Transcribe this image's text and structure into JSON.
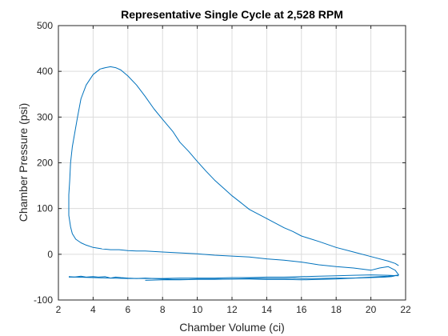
{
  "chart_data": {
    "type": "line",
    "title": "Representative Single Cycle at 2,528 RPM",
    "xlabel": "Chamber Volume (ci)",
    "ylabel": "Chamber Pressure (psi)",
    "xlim": [
      2,
      22
    ],
    "ylim": [
      -100,
      500
    ],
    "xticks": [
      2,
      4,
      6,
      8,
      10,
      12,
      14,
      16,
      18,
      20,
      22
    ],
    "yticks": [
      -100,
      0,
      100,
      200,
      300,
      400,
      500
    ],
    "grid": true,
    "box": true,
    "colors": {
      "series": "#0072BD",
      "grid": "#DCDCDC",
      "axis": "#262626"
    },
    "series": [
      {
        "x": [
          2.6,
          2.9,
          3.3,
          3.6,
          4.0,
          4.3,
          4.7,
          5.0,
          5.3,
          5.6,
          6.0,
          6.5,
          7.0,
          7.5,
          8.0,
          8.6,
          9.0,
          9.5,
          10.0,
          11.0,
          12.0,
          13.0,
          14.0,
          15.0,
          15.6,
          16.0,
          17.0,
          18.0,
          19.0,
          20.0,
          20.8,
          21.2,
          21.4,
          21.6,
          21.4,
          21.0,
          20.5,
          20.0,
          19.0,
          18.0,
          17.0,
          16.0,
          15.0,
          14.0,
          13.0,
          12.0,
          11.0,
          10.0,
          9.0,
          8.0,
          7.5,
          7.0,
          6.5,
          6.0,
          5.5,
          5.0,
          4.5,
          4.0,
          3.6,
          3.3,
          3.0,
          2.8,
          2.7,
          2.6,
          2.6,
          2.65,
          2.7,
          2.8,
          3.1,
          3.3
        ],
        "y": [
          -50,
          -50,
          -48,
          -50,
          -49,
          -50,
          -49,
          -52,
          -50,
          -51,
          -52,
          -53,
          -52,
          -53,
          -54,
          -55,
          -55,
          -55,
          -54,
          -54,
          -54,
          -53,
          -53,
          -53,
          -52,
          -53,
          -53,
          -52,
          -52,
          -51,
          -50,
          -49,
          -47,
          -45,
          -35,
          -27,
          -30,
          -35,
          -30,
          -27,
          -23,
          -17,
          -13,
          -10,
          -6,
          -4,
          -2,
          1,
          3,
          5,
          6,
          7,
          7,
          8,
          10,
          10,
          12,
          15,
          20,
          25,
          33,
          45,
          60,
          85,
          130,
          160,
          200,
          235,
          300,
          340
        ]
      },
      {
        "x": [
          3.3,
          3.6,
          4.0,
          4.4,
          4.7,
          5.0,
          5.3,
          5.6,
          6.0,
          6.5,
          7.0,
          7.5,
          8.0,
          8.6,
          9.0,
          9.5,
          10.0,
          10.5,
          11.0,
          11.5,
          12.0,
          12.5,
          13.0,
          14.0,
          15.0,
          15.5,
          16.0,
          17.0,
          18.0,
          19.0,
          20.0,
          21.0,
          21.4,
          21.6
        ],
        "y": [
          340,
          370,
          393,
          405,
          408,
          410,
          408,
          403,
          390,
          370,
          345,
          318,
          295,
          268,
          245,
          225,
          203,
          182,
          162,
          145,
          128,
          113,
          98,
          78,
          58,
          50,
          40,
          28,
          15,
          5,
          -5,
          -15,
          -20,
          -25
        ]
      },
      {
        "x": [
          21.6,
          21.0,
          20.0,
          19.0,
          18.0,
          17.0,
          16.0,
          15.0,
          14.0,
          13.0,
          12.0,
          11.0,
          10.0,
          9.0,
          8.0,
          7.0,
          6.0,
          5.0,
          4.0,
          3.0,
          2.6
        ],
        "y": [
          -47,
          -46,
          -45,
          -46,
          -47,
          -48,
          -49,
          -50,
          -50,
          -51,
          -51,
          -52,
          -52,
          -52,
          -53,
          -53,
          -53,
          -52,
          -51,
          -50,
          -49
        ]
      },
      {
        "x": [
          21.5,
          21.0,
          20.0,
          19.0,
          18.0,
          17.0,
          16.0,
          15.0,
          14.0,
          13.0,
          12.0,
          11.0,
          10.0,
          9.0,
          8.0,
          7.0
        ],
        "y": [
          -46,
          -48,
          -50,
          -52,
          -54,
          -55,
          -56,
          -55,
          -55,
          -54,
          -54,
          -55,
          -55,
          -56,
          -56,
          -57
        ]
      }
    ]
  }
}
